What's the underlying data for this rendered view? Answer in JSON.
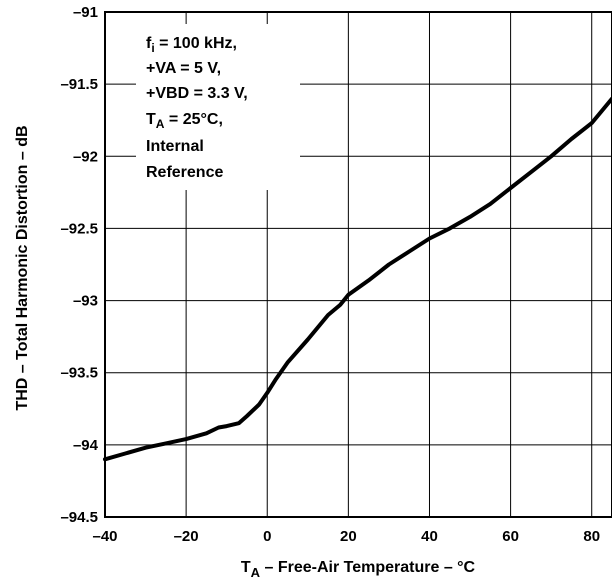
{
  "chart_data": {
    "type": "line",
    "xlabel_main": "T",
    "xlabel_sub": "A",
    "xlabel_rest": " – Free-Air Temperature – °C",
    "ylabel": "THD – Total Harmonic Distortion – dB",
    "xlim": [
      -40,
      85
    ],
    "ylim": [
      -94.5,
      -91
    ],
    "xticks": [
      -40,
      -20,
      0,
      20,
      40,
      60,
      80
    ],
    "xtick_labels": [
      "–40",
      "–20",
      "0",
      "20",
      "40",
      "60",
      "80"
    ],
    "yticks": [
      -91,
      -91.5,
      -92,
      -92.5,
      -93,
      -93.5,
      -94,
      -94.5
    ],
    "ytick_labels": [
      "–91",
      "–91.5",
      "–92",
      "–92.5",
      "–93",
      "–93.5",
      "–94",
      "–94.5"
    ],
    "grid": true,
    "series": [
      {
        "x": [
          -40,
          -35,
          -30,
          -25,
          -20,
          -15,
          -12,
          -10,
          -7,
          -5,
          -2,
          0,
          2,
          5,
          10,
          15,
          18,
          20,
          25,
          30,
          35,
          40,
          45,
          50,
          55,
          60,
          65,
          70,
          75,
          80,
          85
        ],
        "y": [
          -94.1,
          -94.06,
          -94.02,
          -93.99,
          -93.96,
          -93.92,
          -93.88,
          -93.87,
          -93.85,
          -93.8,
          -93.72,
          -93.64,
          -93.55,
          -93.43,
          -93.27,
          -93.1,
          -93.03,
          -92.96,
          -92.86,
          -92.75,
          -92.66,
          -92.57,
          -92.5,
          -92.42,
          -92.33,
          -92.22,
          -92.11,
          -92.0,
          -91.88,
          -91.77,
          -91.6
        ]
      }
    ],
    "annotation": {
      "fi_main": "f",
      "fi_sub": "i",
      "fi_rest": " = 100 kHz,",
      "line2": "+VA = 5 V,",
      "line3": "+VBD = 3.3 V,",
      "ta_main": "T",
      "ta_sub": "A",
      "ta_rest": " = 25°C,",
      "line5": "Internal",
      "line6": "Reference"
    }
  }
}
